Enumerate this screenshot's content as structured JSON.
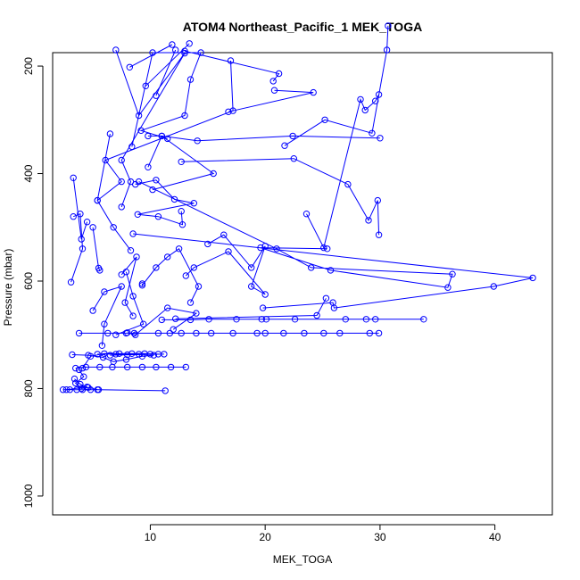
{
  "chart_data": {
    "type": "line",
    "title": "ATOM4 Northeast_Pacific_1 MEK_TOGA",
    "xlabel": "MEK_TOGA",
    "ylabel": "Pressure (mbar)",
    "xlim": [
      1.5,
      45
    ],
    "ylim": [
      1035,
      175
    ],
    "y_reversed": true,
    "xticks": [
      10,
      20,
      30,
      40
    ],
    "yticks": [
      200,
      400,
      600,
      800,
      1000
    ],
    "series_color": "#0000ff",
    "marker": "open-circle",
    "series": [
      {
        "points": [
          [
            8.2,
            202
          ],
          [
            11.9,
            160
          ]
        ]
      },
      {
        "points": [
          [
            10.5,
            255
          ],
          [
            12.2,
            170
          ]
        ]
      },
      {
        "points": [
          [
            9.6,
            237
          ],
          [
            13.4,
            158
          ]
        ]
      },
      {
        "points": [
          [
            7.0,
            170
          ],
          [
            9.0,
            292
          ],
          [
            13.0,
            176
          ],
          [
            7.5,
            375
          ],
          [
            8.3,
            415
          ],
          [
            7.5,
            462
          ]
        ]
      },
      {
        "points": [
          [
            17.0,
            190
          ],
          [
            17.2,
            283
          ],
          [
            6.1,
            375
          ],
          [
            7.5,
            415
          ],
          [
            5.4,
            450
          ]
        ]
      },
      {
        "points": [
          [
            20.7,
            228
          ],
          [
            21.2,
            214
          ],
          [
            13.0,
            172
          ]
        ]
      },
      {
        "points": [
          [
            20.8,
            245
          ],
          [
            24.2,
            249
          ],
          [
            16.8,
            285
          ]
        ]
      },
      {
        "points": [
          [
            8.4,
            350
          ],
          [
            10.2,
            175
          ],
          [
            14.4,
            175
          ],
          [
            13.5,
            225
          ],
          [
            13.0,
            292
          ],
          [
            9.2,
            320
          ],
          [
            11.5,
            335
          ]
        ]
      },
      {
        "points": [
          [
            21.7,
            348
          ],
          [
            25.2,
            300
          ],
          [
            29.3,
            325
          ],
          [
            30.6,
            170
          ],
          [
            30.7,
            125
          ]
        ]
      },
      {
        "points": [
          [
            23.6,
            475
          ],
          [
            25.1,
            538
          ],
          [
            28.3,
            262
          ],
          [
            28.7,
            282
          ],
          [
            29.6,
            265
          ],
          [
            29.9,
            253
          ]
        ]
      },
      {
        "points": [
          [
            6.5,
            326
          ],
          [
            5.4,
            450
          ],
          [
            6.8,
            500
          ],
          [
            8.3,
            543
          ]
        ]
      },
      {
        "points": [
          [
            3.3,
            408
          ],
          [
            4.0,
            522
          ],
          [
            4.5,
            490
          ]
        ]
      },
      {
        "points": [
          [
            3.3,
            480
          ],
          [
            3.9,
            475
          ],
          [
            4.1,
            540
          ],
          [
            3.1,
            602
          ]
        ]
      },
      {
        "points": [
          [
            5.0,
            500
          ],
          [
            5.5,
            576
          ],
          [
            5.6,
            580
          ]
        ]
      },
      {
        "points": [
          [
            9.8,
            330
          ],
          [
            11.0,
            330
          ],
          [
            15.5,
            400
          ],
          [
            10.2,
            430
          ]
        ]
      },
      {
        "points": [
          [
            8.7,
            420
          ],
          [
            10.5,
            412
          ],
          [
            12.1,
            448
          ],
          [
            13.8,
            455
          ],
          [
            8.9,
            476
          ],
          [
            10.7,
            480
          ],
          [
            12.8,
            495
          ],
          [
            12.7,
            470
          ]
        ]
      },
      {
        "points": [
          [
            12.7,
            378
          ],
          [
            22.5,
            372
          ],
          [
            27.2,
            420
          ],
          [
            29.0,
            487
          ],
          [
            29.8,
            450
          ],
          [
            29.9,
            514
          ]
        ]
      },
      {
        "points": [
          [
            9.0,
            415
          ],
          [
            21.0,
            540
          ],
          [
            24.0,
            575
          ],
          [
            36.3,
            587
          ],
          [
            35.9,
            612
          ],
          [
            25.7,
            580
          ],
          [
            19.6,
            538
          ],
          [
            25.4,
            540
          ]
        ]
      },
      {
        "points": [
          [
            9.8,
            388
          ],
          [
            11.0,
            330
          ],
          [
            14.1,
            339
          ],
          [
            22.4,
            330
          ],
          [
            30.0,
            334
          ]
        ]
      },
      {
        "points": [
          [
            8.5,
            512
          ],
          [
            43.3,
            594
          ],
          [
            39.9,
            610
          ],
          [
            26.0,
            650
          ],
          [
            25.9,
            640
          ],
          [
            19.8,
            650
          ]
        ]
      },
      {
        "points": [
          [
            15.0,
            531
          ],
          [
            16.4,
            514
          ],
          [
            18.8,
            575
          ],
          [
            20.0,
            535
          ],
          [
            18.8,
            610
          ],
          [
            20.0,
            625
          ],
          [
            16.8,
            545
          ],
          [
            13.8,
            575
          ],
          [
            13.1,
            590
          ]
        ]
      },
      {
        "points": [
          [
            9.3,
            605
          ],
          [
            9.3,
            608
          ],
          [
            10.5,
            575
          ],
          [
            11.5,
            555
          ],
          [
            12.5,
            540
          ],
          [
            14.2,
            610
          ],
          [
            13.5,
            640
          ]
        ]
      },
      {
        "points": [
          [
            7.5,
            588
          ],
          [
            8.8,
            555
          ],
          [
            7.8,
            640
          ],
          [
            8.5,
            665
          ]
        ]
      },
      {
        "points": [
          [
            5.0,
            655
          ],
          [
            6.0,
            620
          ],
          [
            7.5,
            610
          ],
          [
            6.0,
            680
          ],
          [
            5.8,
            720
          ]
        ]
      },
      {
        "points": [
          [
            7.9,
            583
          ],
          [
            8.5,
            628
          ],
          [
            9.4,
            680
          ],
          [
            7.0,
            700
          ]
        ]
      },
      {
        "points": [
          [
            8.0,
            696
          ],
          [
            8.7,
            700
          ],
          [
            11.5,
            650
          ],
          [
            14.0,
            660
          ],
          [
            12.0,
            690
          ]
        ]
      },
      {
        "points": [
          [
            25.3,
            632
          ],
          [
            24.5,
            664
          ],
          [
            12.2,
            670
          ]
        ]
      },
      {
        "points": [
          [
            11.0,
            672
          ],
          [
            13.5,
            672
          ],
          [
            15.1,
            671
          ],
          [
            17.5,
            671
          ],
          [
            19.7,
            671
          ],
          [
            20.1,
            671
          ],
          [
            22.6,
            671
          ],
          [
            27.0,
            671
          ],
          [
            28.8,
            671
          ],
          [
            29.6,
            671
          ],
          [
            33.8,
            671
          ]
        ]
      },
      {
        "points": [
          [
            3.8,
            697
          ],
          [
            6.3,
            697
          ],
          [
            7.9,
            697
          ],
          [
            8.6,
            697
          ],
          [
            10.7,
            697
          ],
          [
            11.7,
            697
          ],
          [
            12.7,
            697
          ],
          [
            14.0,
            697
          ],
          [
            15.3,
            697
          ],
          [
            17.2,
            697
          ],
          [
            19.3,
            697
          ],
          [
            20.0,
            697
          ],
          [
            21.6,
            697
          ],
          [
            23.4,
            697
          ],
          [
            25.1,
            697
          ],
          [
            26.5,
            697
          ],
          [
            29.1,
            697
          ],
          [
            29.9,
            697
          ]
        ]
      },
      {
        "points": [
          [
            4.1,
            762
          ],
          [
            4.8,
            740
          ],
          [
            6.0,
            735
          ],
          [
            7.3,
            735
          ],
          [
            8.4,
            735
          ],
          [
            9.5,
            735
          ],
          [
            10.7,
            736
          ],
          [
            7.0,
            736
          ],
          [
            5.4,
            736
          ],
          [
            9.0,
            736
          ],
          [
            10.0,
            736
          ],
          [
            11.2,
            736
          ],
          [
            6.5,
            738
          ],
          [
            8.0,
            737
          ]
        ]
      },
      {
        "points": [
          [
            3.5,
            762
          ],
          [
            4.4,
            760
          ],
          [
            5.6,
            760
          ],
          [
            6.7,
            760
          ],
          [
            8.0,
            760
          ],
          [
            9.3,
            760
          ],
          [
            10.5,
            760
          ],
          [
            11.8,
            760
          ],
          [
            13.1,
            760
          ]
        ]
      },
      {
        "points": [
          [
            3.2,
            737
          ],
          [
            4.6,
            738
          ],
          [
            5.9,
            742
          ],
          [
            6.8,
            750
          ],
          [
            7.9,
            746
          ],
          [
            9.3,
            740
          ],
          [
            10.3,
            738
          ]
        ]
      },
      {
        "points": [
          [
            3.8,
            765
          ],
          [
            4.2,
            778
          ],
          [
            3.5,
            790
          ],
          [
            4.0,
            800
          ],
          [
            4.6,
            798
          ],
          [
            5.4,
            802
          ]
        ]
      },
      {
        "points": [
          [
            2.4,
            802
          ],
          [
            3.0,
            802
          ],
          [
            3.6,
            802
          ],
          [
            4.1,
            802
          ],
          [
            4.8,
            802
          ],
          [
            5.5,
            802
          ],
          [
            11.3,
            804
          ]
        ]
      },
      {
        "points": [
          [
            3.4,
            782
          ],
          [
            3.9,
            792
          ],
          [
            4.5,
            797
          ],
          [
            2.7,
            802
          ]
        ]
      }
    ]
  }
}
